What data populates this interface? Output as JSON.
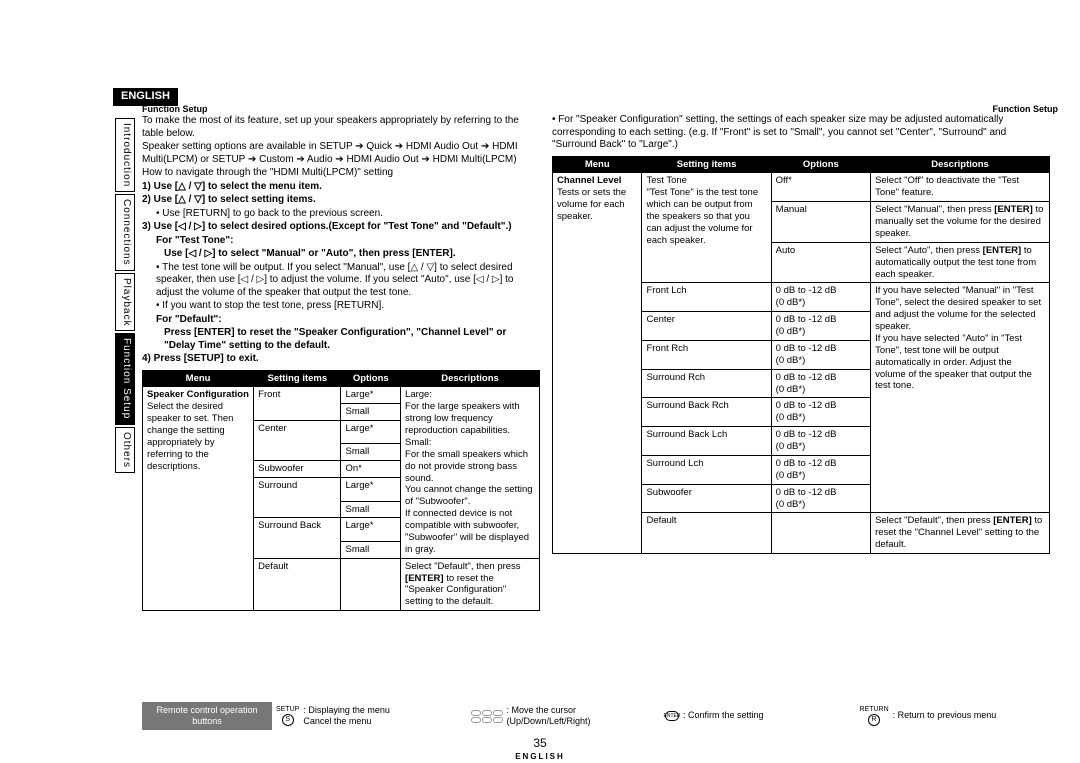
{
  "lang_top": "ENGLISH",
  "label_left": "Function Setup",
  "label_right": "Function Setup",
  "sidebar": [
    {
      "label": "Introduction",
      "active": false
    },
    {
      "label": "Connections",
      "active": false
    },
    {
      "label": "Playback",
      "active": false
    },
    {
      "label": "Function Setup",
      "active": true
    },
    {
      "label": "Others",
      "active": false
    }
  ],
  "intro": {
    "line1": "To make the most of its feature, set up your speakers appropriately by referring to the table below.",
    "line2": "Speaker setting options are available in SETUP ➔ Quick ➔ HDMI Audio Out ➔ HDMI Multi(LPCM) or SETUP ➔ Custom ➔ Audio ➔ HDMI Audio Out ➔ HDMI Multi(LPCM)",
    "nav_title": "How to navigate through the \"HDMI Multi(LPCM)\" setting",
    "step1": "1)  Use [△ / ▽] to select the menu item.",
    "step2": "2)  Use [△ / ▽] to select setting items.",
    "step2_sub": "• Use [RETURN] to go back to the previous screen.",
    "step3": "3)  Use [◁ / ▷] to select desired options.(Except for \"Test Tone\" and \"Default\".)",
    "for_test": "For \"Test Tone\":",
    "for_test_sub1": "Use [◁ / ▷] to select \"Manual\" or \"Auto\", then press [ENTER].",
    "for_test_sub2": "• The test tone will be output. If you select \"Manual\", use [△ / ▽] to select desired speaker, then use [◁ / ▷] to adjust the volume. If you select \"Auto\", use [◁ / ▷] to adjust the volume of the speaker that output the test tone.",
    "for_test_sub3": "• If you want to stop the test tone, press [RETURN].",
    "for_default": "For \"Default\":",
    "for_default_sub": "Press [ENTER] to reset the \"Speaker Configuration\", \"Channel Level\" or \"Delay Time\" setting to the default.",
    "step4": "4)  Press [SETUP] to exit."
  },
  "right_bullet": "• For \"Speaker Configuration\" setting, the settings of each speaker size may be adjusted automatically corresponding to each setting. (e.g. If \"Front\" is set to \"Small\", you cannot set \"Center\", \"Surround\" and \"Surround Back\" to \"Large\".)",
  "table_headers": {
    "menu": "Menu",
    "setting": "Setting items",
    "options": "Options",
    "desc": "Descriptions"
  },
  "table1": {
    "menu_title": "Speaker Configuration",
    "menu_body": "Select the desired speaker to set. Then change the setting appropriately by referring to the descriptions.",
    "settings": [
      {
        "name": "Front",
        "opts": [
          "Large*",
          "Small"
        ],
        "desc": "Large:\nFor the large speakers with strong low frequency reproduction capabilities.\nSmall:\nFor the small speakers which do not provide strong bass sound.\nYou cannot change the setting of \"Subwoofer\".\nIf connected device is not compatible with subwoofer, \"Subwoofer\" will be displayed in gray.",
        "desc_rows": 10
      },
      {
        "name": "Center",
        "opts": [
          "Large*",
          "Small"
        ]
      },
      {
        "name": "Subwoofer",
        "opts": [
          "On*"
        ]
      },
      {
        "name": "Surround",
        "opts": [
          "Large*",
          "Small"
        ]
      },
      {
        "name": "Surround Back",
        "opts": [
          "Large*",
          "Small"
        ]
      },
      {
        "name": "Default",
        "opts": [
          ""
        ],
        "desc2": "Select \"Default\", then press [ENTER] to reset the \"Speaker Configuration\" setting to the default."
      }
    ]
  },
  "table2": {
    "menu_title": "Channel Level",
    "menu_body": "Tests or sets the volume for each speaker.",
    "settings": [
      {
        "name": "Test Tone",
        "name_desc": "\"Test Tone\" is the test tone which can be output from the speakers so that you can adjust the volume for each speaker.",
        "opts": [
          {
            "o": "Off*",
            "d": "Select \"Off\" to deactivate the \"Test Tone\" feature."
          },
          {
            "o": "Manual",
            "d": "Select \"Manual\", then press [ENTER] to manually set the volume for the desired speaker."
          },
          {
            "o": "Auto",
            "d": "Select \"Auto\", then press [ENTER] to automatically output the test tone from each speaker."
          }
        ]
      },
      {
        "name": "Front Lch",
        "opts": [
          {
            "o": "0 dB to -12 dB\n(0 dB*)",
            "d": "If you have selected \"Manual\" in \"Test Tone\", select the desired speaker to set and adjust the volume for the selected speaker.\nIf you have selected \"Auto\" in \"Test Tone\", test tone will be output automatically in order. Adjust the volume of the speaker that output the test tone."
          }
        ]
      },
      {
        "name": "Center",
        "opts": [
          {
            "o": "0 dB to -12 dB\n(0 dB*)"
          }
        ]
      },
      {
        "name": "Front Rch",
        "opts": [
          {
            "o": "0 dB to -12 dB\n(0 dB*)"
          }
        ]
      },
      {
        "name": "Surround Rch",
        "opts": [
          {
            "o": "0 dB to -12 dB\n(0 dB*)"
          }
        ]
      },
      {
        "name": "Surround Back Rch",
        "opts": [
          {
            "o": "0 dB to -12 dB\n(0 dB*)"
          }
        ]
      },
      {
        "name": "Surround Back Lch",
        "opts": [
          {
            "o": "0 dB to -12 dB\n(0 dB*)"
          }
        ]
      },
      {
        "name": "Surround Lch",
        "opts": [
          {
            "o": "0 dB to -12 dB\n(0 dB*)"
          }
        ]
      },
      {
        "name": "Subwoofer",
        "opts": [
          {
            "o": "0 dB to -12 dB\n(0 dB*)"
          }
        ]
      },
      {
        "name": "Default",
        "opts": [
          {
            "o": "",
            "d": "Select \"Default\", then press [ENTER] to reset the \"Channel Level\" setting to the default."
          }
        ]
      }
    ]
  },
  "footer": {
    "label": "Remote control operation buttons",
    "c1a": ": Displaying the menu",
    "c1b": "Cancel the menu",
    "c1_icon_top": "SETUP",
    "c1_icon_btn": "S",
    "c2a": ": Move the cursor",
    "c2b": "(Up/Down/Left/Right)",
    "c3": ": Confirm the setting",
    "c3_icon": "ENTER",
    "c4": ": Return to previous menu",
    "c4_icon_top": "RETURN",
    "c4_icon_btn": "R"
  },
  "page_num": "35",
  "lang_bottom": "ENGLISH"
}
